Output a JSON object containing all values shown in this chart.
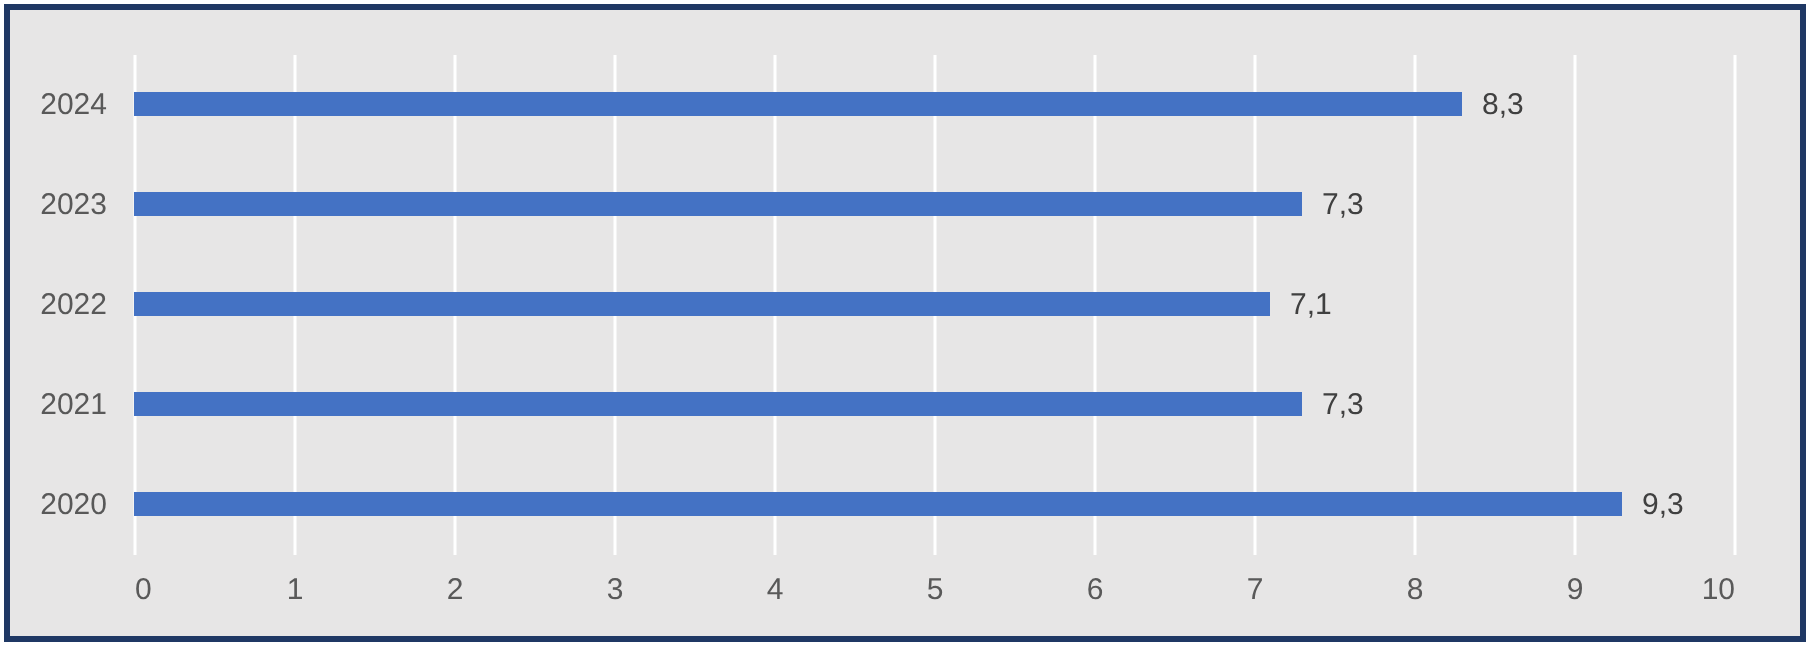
{
  "chart_data": {
    "type": "bar",
    "orientation": "horizontal",
    "categories": [
      "2024",
      "2023",
      "2022",
      "2021",
      "2020"
    ],
    "values": [
      8.3,
      7.3,
      7.1,
      7.3,
      9.3
    ],
    "value_labels": [
      "8,3",
      "7,3",
      "7,1",
      "7,3",
      "9,3"
    ],
    "color": "#4472c4",
    "xlim": [
      0,
      10
    ],
    "xticks": [
      0,
      1,
      2,
      3,
      4,
      5,
      6,
      7,
      8,
      9,
      10
    ],
    "grid": "x"
  }
}
